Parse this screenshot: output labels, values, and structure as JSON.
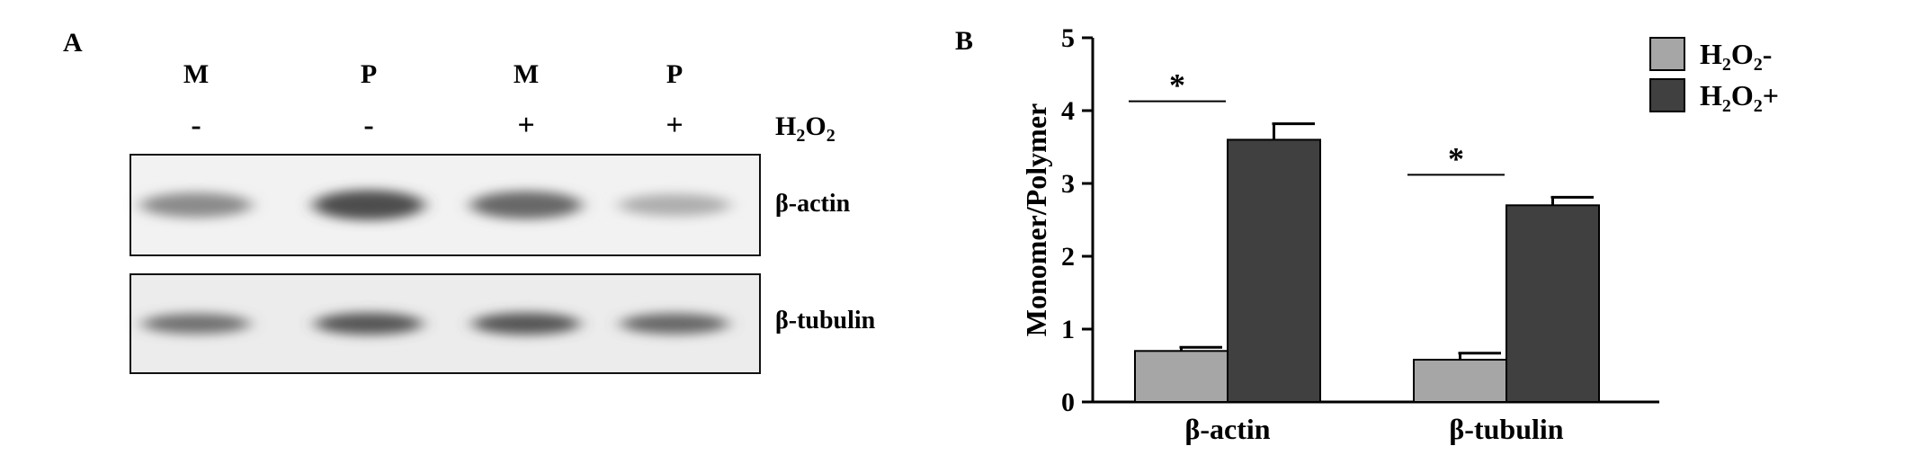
{
  "panel_a": {
    "label": "A",
    "lanes": [
      {
        "fraction": "M",
        "treatment": "-"
      },
      {
        "fraction": "P",
        "treatment": "-"
      },
      {
        "fraction": "M",
        "treatment": "+"
      },
      {
        "fraction": "P",
        "treatment": "+"
      }
    ],
    "treatment_label": {
      "main": "H",
      "sub1": "2",
      "mid": "O",
      "sub2": "2"
    },
    "blots": [
      {
        "name": "β-actin",
        "band_intensity": [
          0.55,
          0.9,
          0.75,
          0.35
        ]
      },
      {
        "name": "β-tubulin",
        "band_intensity": [
          0.7,
          0.85,
          0.85,
          0.75
        ]
      }
    ]
  },
  "chart_data": {
    "panel_label": "B",
    "type": "bar",
    "categories": [
      "β-actin",
      "β-tubulin"
    ],
    "series": [
      {
        "name": "H2O2-",
        "values": [
          0.7,
          0.58
        ],
        "errors": [
          0.05,
          0.09
        ],
        "color": "#a6a6a6"
      },
      {
        "name": "H2O2+",
        "values": [
          3.6,
          2.7
        ],
        "errors": [
          0.22,
          0.11
        ],
        "color": "#404040"
      }
    ],
    "legend_entries": [
      {
        "main": "H",
        "sub1": "2",
        "mid": "O",
        "sub2": "2",
        "suffix": "-"
      },
      {
        "main": "H",
        "sub1": "2",
        "mid": "O",
        "sub2": "2",
        "suffix": "+"
      }
    ],
    "ylabel": "Monomer/Polymer",
    "ylim": [
      0,
      5
    ],
    "yticks": [
      "0",
      "1",
      "2",
      "3",
      "4",
      "5"
    ],
    "significance": [
      "*",
      "*"
    ],
    "legend_position": "top-right",
    "grid": false
  }
}
